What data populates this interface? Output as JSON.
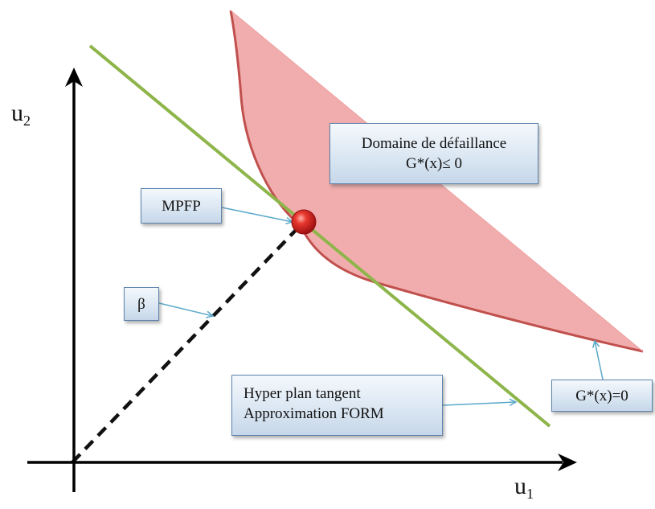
{
  "axes": {
    "u1_label": "u",
    "u1_subscript": "1",
    "u2_label": "u",
    "u2_subscript": "2"
  },
  "callouts": {
    "failure_domain": {
      "line1": "Domaine de défaillance",
      "line2": "G*(x)≤ 0"
    },
    "mpfp": "MPFP",
    "beta": "β",
    "tangent_hyperplane": {
      "line1": "Hyper plan tangent",
      "line2": "Approximation FORM"
    },
    "limit_state": "G*(x)=0"
  },
  "colors": {
    "failure_region_fill": "#ef9f9f",
    "limit_curve": "#c0504d",
    "tangent_line": "#8db54a",
    "design_point": "#d42820",
    "callout_border": "#5d84ad",
    "callout_fill": "#dbe7f3",
    "leader_arrow": "#5aa9c9"
  }
}
